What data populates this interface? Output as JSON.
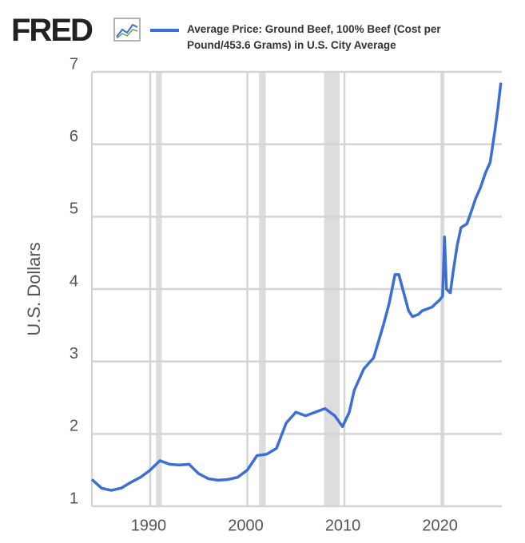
{
  "chart_data": {
    "type": "line",
    "logo": "FRED",
    "ylabel": "U.S. Dollars",
    "x": [
      1984,
      1985,
      1986,
      1987,
      1988,
      1989,
      1990,
      1991,
      1992,
      1993,
      1994,
      1995,
      1996,
      1997,
      1998,
      1999,
      2000,
      2001,
      2002,
      2003,
      2004,
      2005,
      2006,
      2007,
      2008,
      2009,
      2009.8,
      2010.5,
      2011,
      2012,
      2013,
      2014,
      2014.6,
      2015.2,
      2015.6,
      2016,
      2016.6,
      2017,
      2017.6,
      2018,
      2019,
      2019.8,
      2020.1,
      2020.3,
      2020.5,
      2020.9,
      2021.2,
      2021.6,
      2022,
      2022.6,
      2023,
      2023.5,
      2024,
      2024.5,
      2025,
      2025.5,
      2025.8,
      2026.1
    ],
    "series": [
      {
        "name": "Average Price: Ground Beef, 100% Beef (Cost per Pound/453.6 Grams) in U.S. City Average",
        "color": "#3c6fd6",
        "values": [
          1.37,
          1.25,
          1.22,
          1.25,
          1.33,
          1.4,
          1.5,
          1.63,
          1.58,
          1.57,
          1.58,
          1.45,
          1.38,
          1.36,
          1.37,
          1.4,
          1.5,
          1.7,
          1.72,
          1.8,
          2.15,
          2.3,
          2.25,
          2.3,
          2.35,
          2.25,
          2.1,
          2.3,
          2.6,
          2.9,
          3.05,
          3.5,
          3.8,
          4.2,
          4.2,
          4.0,
          3.7,
          3.62,
          3.65,
          3.7,
          3.75,
          3.85,
          3.9,
          4.72,
          4.0,
          3.95,
          4.25,
          4.6,
          4.85,
          4.9,
          5.05,
          5.25,
          5.4,
          5.6,
          5.75,
          6.2,
          6.5,
          6.85
        ]
      }
    ],
    "recessions": [
      [
        1990.6,
        1991.2
      ],
      [
        2001.2,
        2001.9
      ],
      [
        2007.9,
        2009.5
      ],
      [
        2020.1,
        2020.3
      ]
    ],
    "recession_color": "#dddddd",
    "xlim": [
      1984,
      2026.2
    ],
    "xticks": [
      1990,
      2000,
      2010,
      2020
    ],
    "ylim": [
      1,
      7
    ],
    "yticks": [
      1,
      2,
      3,
      4,
      5,
      6,
      7
    ],
    "grid": true
  }
}
